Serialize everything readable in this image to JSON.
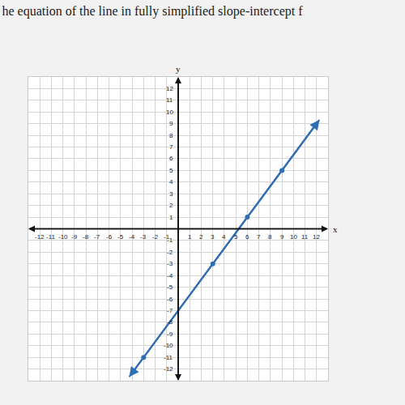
{
  "chart_data": {
    "type": "line",
    "title": "he equation of the line in fully simplified slope-intercept f",
    "x_label": "x",
    "y_label": "y",
    "xlim": [
      -13,
      13
    ],
    "ylim": [
      -13,
      13
    ],
    "xticks": [
      -12,
      -11,
      -10,
      -9,
      -8,
      -7,
      -6,
      -5,
      -4,
      -3,
      -2,
      -1,
      1,
      2,
      3,
      4,
      5,
      6,
      7,
      8,
      9,
      10,
      11,
      12
    ],
    "yticks": [
      -12,
      -11,
      -10,
      -9,
      -8,
      -7,
      -6,
      -5,
      -4,
      -3,
      -2,
      -1,
      1,
      2,
      3,
      4,
      5,
      6,
      7,
      8,
      9,
      10,
      11,
      12
    ],
    "grid": true,
    "series": [
      {
        "type": "line",
        "color": "#2f6db5",
        "marker": "arrow",
        "line_style": "solid",
        "x": [
          -4.25,
          12.25
        ],
        "values": [
          -12.67,
          9.33
        ]
      },
      {
        "type": "scatter",
        "color": "#2f6db5",
        "marker": "circle",
        "x": [
          -3,
          3,
          6,
          9
        ],
        "values": [
          -11,
          -3,
          1,
          5
        ]
      }
    ]
  }
}
